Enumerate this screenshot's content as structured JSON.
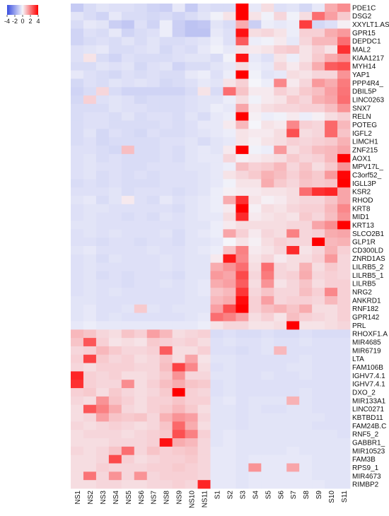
{
  "chart_data": {
    "type": "heatmap",
    "columns": [
      "NS1",
      "NS2",
      "NS3",
      "NS4",
      "NS5",
      "NS6",
      "NS7",
      "NS8",
      "NS9",
      "NS10",
      "NS11",
      "S1",
      "S2",
      "S3",
      "S4",
      "S5",
      "S6",
      "S7",
      "S8",
      "S9",
      "S10",
      "S11"
    ],
    "rows": [
      "PDE1C",
      "DSG2",
      "XXYLT1.AS",
      "GPR15",
      "DEPDC1",
      "MAL2",
      "KIAA1217",
      "MYH14",
      "YAP1",
      "PPP4R4_",
      "DBIL5P",
      "LINC0263",
      "SNX7",
      "RELN",
      "POTEG",
      "IGFL2",
      "LIMCH1",
      "ZNF215",
      "AOX1",
      "MPV17L_",
      "C3orf52_",
      "IGLL3P",
      "KSR2",
      "RHOD",
      "KRT8",
      "MID1",
      "KRT13",
      "SLCO2B1",
      "GLP1R",
      "CD300LD",
      "ZNRD1AS",
      "LILRB5_2",
      "LILRB5_1",
      "LILRB5",
      "NRG2",
      "ANKRD1",
      "RNF182",
      "GPR142",
      "PRL",
      "RHOXF1.A",
      "MIR4685",
      "MIR6719",
      "LTA",
      "FAM106B",
      "IGHV7.4.1",
      "IGHV7.4.1",
      "DXO_2",
      "MIR133A1",
      "LINC0271",
      "KBTBD11",
      "FAM24B.C",
      "RNF5_2",
      "GABBR1_",
      "MIR10523",
      "FAM3B",
      "RPS9_1",
      "MIR4673",
      "RIMBP2"
    ],
    "legend": {
      "ticks": [
        "-4",
        "-2",
        "0",
        "2",
        "4"
      ],
      "min": -4,
      "max": 4
    },
    "color_low": "#3a4ee0",
    "color_mid": "#f5f5fa",
    "color_high": "#ff0000",
    "values": [
      [
        -1,
        -0.6,
        -0.4,
        -0.5,
        -0.5,
        -0.6,
        -0.8,
        -0.9,
        -0.3,
        -1,
        -0.5,
        -0.6,
        -0.6,
        4,
        -0.3,
        0.4,
        -0.5,
        -0.4,
        -0.7,
        -0.3,
        1.2,
        1.7
      ],
      [
        -0.4,
        -0.6,
        -0.8,
        -0.3,
        -0.6,
        -0.6,
        -0.7,
        -0.6,
        -0.8,
        -0.6,
        -0.4,
        -0.1,
        0.3,
        4,
        0.3,
        -0.1,
        0.5,
        -0.1,
        0.4,
        2.2,
        1.4,
        0.7
      ],
      [
        -0.6,
        -0.3,
        -0.4,
        -0.9,
        -1.1,
        -0.5,
        -0.8,
        -0.2,
        -0.9,
        -1.2,
        -1.1,
        -0.4,
        -0.6,
        1.2,
        -0.9,
        -0.2,
        -0.3,
        -0.2,
        3,
        -0.7,
        -0.5,
        0.1
      ],
      [
        -0.8,
        -0.5,
        -0.6,
        -0.3,
        -0.8,
        -0.6,
        -0.5,
        -0.2,
        -0.9,
        -1.2,
        -1.2,
        -0.3,
        -0.5,
        3.7,
        0.4,
        0.5,
        0.3,
        -0.2,
        0.6,
        0.6,
        1.2,
        1.5
      ],
      [
        -0.8,
        -0.6,
        -0.5,
        -0.6,
        -0.4,
        -0.6,
        -0.4,
        -0.6,
        -0.6,
        -0.5,
        -0.4,
        -0.2,
        -0.5,
        2.5,
        -0.2,
        -0.1,
        0.2,
        -0.3,
        0.5,
        1,
        1,
        2.2
      ],
      [
        -0.5,
        -0.4,
        -0.3,
        -0.6,
        -0.6,
        -0.5,
        -0.4,
        -0.7,
        -0.5,
        -0.6,
        -0.3,
        -0.1,
        -0.3,
        0.3,
        0.2,
        0.3,
        0.6,
        0.7,
        0.3,
        0.6,
        0.3,
        3.2
      ],
      [
        -0.5,
        0.3,
        -0.6,
        -0.8,
        -0.5,
        -0.6,
        -0.6,
        -0.6,
        -0.5,
        -0.4,
        -0.4,
        -0.6,
        -0.1,
        3.7,
        -0.3,
        -0.5,
        0.3,
        -0.2,
        0.3,
        0.7,
        1.2,
        1.6
      ],
      [
        -0.6,
        -0.6,
        -0.4,
        -0.5,
        -0.4,
        -0.7,
        -0.5,
        -0.4,
        -0.8,
        -0.6,
        -0.6,
        -0.4,
        -0.3,
        0.4,
        -0.2,
        -0.3,
        0.5,
        0.2,
        0.5,
        1.2,
        2.5,
        2.7
      ],
      [
        -0.3,
        -0.5,
        -0.6,
        -0.7,
        -0.5,
        -0.6,
        -0.5,
        -0.6,
        -0.6,
        -0.3,
        -0.2,
        -0.5,
        -0.2,
        4.5,
        -0.1,
        -0.4,
        -0.3,
        0.4,
        0.3,
        0.5,
        0.5,
        1.6
      ],
      [
        -0.7,
        -0.5,
        -0.6,
        -0.4,
        -0.5,
        -0.4,
        -0.5,
        -0.7,
        -0.6,
        -0.5,
        -0.3,
        -0.4,
        0.3,
        0.6,
        0,
        -0.2,
        1.8,
        0.2,
        0.5,
        1.5,
        1.2,
        2
      ],
      [
        -0.8,
        -0.6,
        0.5,
        -0.6,
        -0.8,
        -0.8,
        -0.8,
        -0.8,
        -0.8,
        -0.6,
        0.3,
        -0.6,
        2.2,
        0.8,
        0.2,
        0.2,
        0.6,
        0.4,
        0.7,
        0.9,
        1.4,
        2.1
      ],
      [
        -0.7,
        0.6,
        -0.5,
        -0.4,
        -0.5,
        -0.7,
        -0.6,
        -0.6,
        -0.6,
        -0.5,
        -0.4,
        -0.4,
        -0.2,
        0.4,
        -0.1,
        0.2,
        0.3,
        0.7,
        0.5,
        1.1,
        1.3,
        2.2
      ],
      [
        -0.6,
        -0.6,
        -0.6,
        -0.4,
        -0.5,
        -0.5,
        -0.6,
        -0.6,
        -0.6,
        -0.5,
        -0.4,
        -0.2,
        -0.3,
        1.3,
        0.2,
        0.4,
        0.5,
        0.5,
        0.6,
        0.6,
        0.9,
        1.6
      ],
      [
        -0.6,
        -0.5,
        -0.5,
        -0.6,
        -0.4,
        -0.6,
        -0.5,
        -0.5,
        -0.6,
        -0.4,
        -0.6,
        -0.3,
        -0.2,
        4.5,
        0.1,
        -0.2,
        -0.1,
        0.2,
        -0.2,
        0.1,
        0.4,
        0.6
      ],
      [
        -0.6,
        -0.5,
        -0.5,
        -0.6,
        -0.6,
        -0.6,
        -0.6,
        -0.5,
        -0.6,
        -0.5,
        -0.3,
        -0.3,
        0.2,
        1,
        0,
        0.3,
        0.2,
        1.8,
        0.6,
        0.5,
        2.3,
        1
      ],
      [
        -0.6,
        -0.4,
        -0.7,
        -0.5,
        -0.6,
        -0.7,
        -0.5,
        -0.6,
        -0.6,
        -0.5,
        -0.4,
        -0.3,
        -0.2,
        0.3,
        0.2,
        0.2,
        0.4,
        2.7,
        0.4,
        0.5,
        2.3,
        0.8
      ],
      [
        -0.6,
        -0.5,
        -0.7,
        -0.6,
        -0.6,
        -0.6,
        -0.6,
        -0.5,
        -0.5,
        -0.4,
        -0.6,
        -0.4,
        -0.3,
        0.3,
        0.1,
        0.3,
        0.4,
        0.6,
        0.5,
        0.6,
        0.7,
        1.1
      ],
      [
        -0.5,
        -0.5,
        -0.6,
        -0.7,
        0.9,
        -0.6,
        -0.6,
        -0.5,
        -0.6,
        -0.4,
        -0.3,
        -0.4,
        0.2,
        4.5,
        -0.1,
        -0.2,
        1.5,
        0.4,
        0.6,
        0.9,
        1,
        1.3
      ],
      [
        -0.5,
        -0.4,
        -0.6,
        -0.5,
        -0.6,
        -0.6,
        -0.6,
        -0.5,
        -0.6,
        -0.4,
        -0.3,
        -0.3,
        0.5,
        0.1,
        0.2,
        0.3,
        0.4,
        0.7,
        0.5,
        0.6,
        1,
        4.5
      ],
      [
        -0.5,
        -0.4,
        -0.5,
        -0.5,
        -0.6,
        -0.6,
        -0.5,
        -0.5,
        -0.5,
        -0.4,
        -0.4,
        -0.3,
        -0.2,
        0.9,
        0.6,
        0.7,
        1,
        0.5,
        0.8,
        0.4,
        0.7,
        1.6
      ],
      [
        -0.5,
        -0.4,
        -0.6,
        -0.5,
        -0.6,
        -0.5,
        -0.6,
        -0.5,
        -0.5,
        -0.5,
        -0.4,
        -0.3,
        0.3,
        0.5,
        0.7,
        1.1,
        0.9,
        0.6,
        0.9,
        0.7,
        1.5,
        3.9
      ],
      [
        -0.6,
        -0.5,
        -0.6,
        -0.5,
        -0.6,
        -0.6,
        -0.6,
        -0.5,
        -0.5,
        -0.5,
        -0.4,
        -0.3,
        -0.1,
        0.3,
        0.3,
        1.2,
        0.7,
        0.5,
        0.8,
        0.7,
        0.8,
        4.5
      ],
      [
        -0.5,
        -0.5,
        -0.5,
        -0.4,
        -0.6,
        -0.5,
        -0.5,
        -0.5,
        -0.6,
        -0.5,
        -0.4,
        -0.2,
        0.1,
        0.2,
        0.2,
        0.3,
        0.3,
        0.4,
        2.2,
        3.2,
        3.4,
        1.3
      ],
      [
        -0.4,
        -0.3,
        -0.6,
        -0.4,
        0.2,
        -0.5,
        -0.6,
        -0.3,
        -0.5,
        -0.4,
        -0.3,
        -0.2,
        1.2,
        3.2,
        0.3,
        0.1,
        0.2,
        0.4,
        0.5,
        0.5,
        0.8,
        1.3
      ],
      [
        -0.5,
        -0.4,
        -0.4,
        -0.5,
        -0.5,
        -0.5,
        -0.5,
        -0.5,
        -0.6,
        -0.4,
        -0.3,
        -0.2,
        0.2,
        4.5,
        0.1,
        0.4,
        0.3,
        0.5,
        0.6,
        0.6,
        1,
        1.8
      ],
      [
        -0.5,
        -0.4,
        -0.5,
        -0.5,
        -0.6,
        -0.5,
        -0.6,
        -0.4,
        -0.5,
        -0.4,
        -0.3,
        -0.3,
        0.4,
        3.3,
        0.2,
        0.3,
        0.4,
        0.3,
        0.7,
        0.5,
        0.9,
        1.6
      ],
      [
        -0.4,
        -0.4,
        -0.5,
        -0.5,
        -0.5,
        -0.5,
        -0.5,
        -0.5,
        -0.5,
        -0.4,
        -0.4,
        -0.2,
        0.2,
        0.4,
        0.4,
        0.4,
        0.4,
        0.5,
        0.5,
        1.3,
        1.7,
        4.5
      ],
      [
        -0.5,
        -0.4,
        -0.5,
        -0.4,
        -0.5,
        -0.5,
        -0.5,
        -0.4,
        -0.6,
        -0.4,
        -0.3,
        -0.2,
        1.3,
        0.6,
        0.2,
        0.5,
        0.4,
        1.9,
        0.5,
        0.6,
        1.2,
        1.3
      ],
      [
        -0.5,
        -0.5,
        -0.6,
        -0.5,
        -0.5,
        -0.6,
        -0.5,
        -0.5,
        -0.6,
        -0.4,
        -0.4,
        -0.3,
        0,
        0.3,
        0.1,
        0.4,
        0.6,
        0.5,
        0.5,
        4.5,
        1,
        1.1
      ],
      [
        -0.4,
        -0.3,
        -0.5,
        -0.5,
        -0.5,
        -0.5,
        -0.4,
        -0.5,
        -0.5,
        -0.4,
        -0.3,
        -0.2,
        0.8,
        1.9,
        0.2,
        0.3,
        0.5,
        3.3,
        0.3,
        0.5,
        1.1,
        0.6
      ],
      [
        -0.5,
        -0.4,
        -0.6,
        -0.4,
        -0.5,
        -0.5,
        -0.5,
        -0.4,
        -0.5,
        -0.4,
        -0.4,
        0.2,
        3.6,
        1.8,
        0.3,
        0.5,
        0.2,
        0.4,
        0.4,
        0.6,
        1.5,
        0.5
      ],
      [
        -0.5,
        -0.4,
        -0.5,
        -0.5,
        -0.5,
        -0.5,
        -0.5,
        -0.4,
        -0.5,
        -0.4,
        -0.4,
        1.2,
        1.6,
        2.2,
        0.4,
        2.2,
        0.5,
        0.4,
        1.1,
        0.4,
        0.7,
        0.5
      ],
      [
        -0.5,
        -0.4,
        -0.6,
        -0.5,
        -0.6,
        -0.5,
        -0.5,
        -0.5,
        -0.6,
        -0.4,
        -0.4,
        1.5,
        1.3,
        2.8,
        0.5,
        2,
        0.5,
        0.6,
        1.2,
        0.5,
        0.6,
        0.5
      ],
      [
        -0.5,
        -0.4,
        -0.5,
        -0.5,
        -0.6,
        -0.5,
        -0.5,
        -0.4,
        -0.5,
        -0.4,
        -0.3,
        1.2,
        1.4,
        2.5,
        0.4,
        1.6,
        0.3,
        0.5,
        0.8,
        0.4,
        0.6,
        0.6
      ],
      [
        -0.5,
        -0.4,
        -0.5,
        -0.4,
        -0.5,
        -0.5,
        -0.5,
        -0.5,
        -0.5,
        -0.4,
        -0.3,
        0.8,
        1,
        3.1,
        0.5,
        0.8,
        0.5,
        0.5,
        0.9,
        0.6,
        1.8,
        0.6
      ],
      [
        -0.4,
        -0.4,
        -0.5,
        -0.5,
        -0.5,
        -0.5,
        -0.5,
        -0.5,
        -0.5,
        -0.4,
        -0.4,
        1,
        1.2,
        3.8,
        0.6,
        1.4,
        0.5,
        0.6,
        0.6,
        0.5,
        1,
        0.6
      ],
      [
        -0.4,
        -0.3,
        -0.5,
        -0.5,
        -0.4,
        0.7,
        -0.4,
        -0.5,
        -0.4,
        -0.4,
        -0.4,
        1.4,
        2.7,
        4.5,
        0.6,
        0.9,
        1.1,
        0.8,
        1.2,
        0.4,
        0.4,
        0.6
      ],
      [
        -0.4,
        -0.3,
        -0.5,
        -0.4,
        -0.5,
        -0.5,
        -0.5,
        -0.5,
        -0.5,
        -0.4,
        -0.3,
        2.2,
        1.9,
        1.4,
        0.4,
        0.6,
        0.3,
        0.9,
        0.6,
        0.5,
        0.4,
        0.6
      ],
      [
        -0.3,
        -0.2,
        -0.3,
        -0.3,
        -0.3,
        -0.3,
        -0.3,
        -0.3,
        -0.3,
        -0.3,
        -0.2,
        0.3,
        0.5,
        0.5,
        0.3,
        0.3,
        0.4,
        4.5,
        0.3,
        0.3,
        0.4,
        0.5
      ],
      [
        1,
        0.8,
        0.5,
        0.4,
        0.8,
        0.6,
        1.4,
        1,
        0.4,
        0.5,
        0.6,
        -0.6,
        -0.5,
        -0.6,
        -0.6,
        -0.5,
        -0.6,
        -0.6,
        -0.5,
        -0.6,
        -0.6,
        -0.6
      ],
      [
        0.8,
        2.6,
        0.6,
        0.3,
        0.4,
        0.3,
        0.7,
        0.6,
        0.5,
        0.6,
        0.4,
        -0.5,
        -0.4,
        -0.5,
        -0.5,
        -0.4,
        -0.5,
        -0.5,
        -0.4,
        -0.5,
        -0.5,
        -0.5
      ],
      [
        0.5,
        0.6,
        1,
        0.7,
        0.5,
        0.5,
        0.6,
        2.5,
        0.4,
        0.4,
        0.6,
        -0.5,
        -0.5,
        -0.6,
        -0.5,
        -0.4,
        1,
        -0.5,
        -0.5,
        -0.5,
        -0.5,
        -0.5
      ],
      [
        0.6,
        2.9,
        0.7,
        0.5,
        0.6,
        0.4,
        0.5,
        0.8,
        0.4,
        1.3,
        0.3,
        -0.4,
        -0.4,
        -0.5,
        -0.5,
        -0.5,
        -0.5,
        -0.5,
        -0.4,
        -0.5,
        -0.5,
        -0.5
      ],
      [
        0.5,
        0.4,
        0.6,
        0.6,
        0.6,
        0.5,
        0.5,
        0.9,
        2.9,
        1.8,
        0.4,
        -0.5,
        -0.4,
        -0.5,
        -0.5,
        -0.5,
        -0.5,
        -0.4,
        -0.4,
        -0.5,
        -0.5,
        -0.5
      ],
      [
        3.4,
        0.6,
        0.5,
        0.6,
        0.4,
        0.4,
        0.5,
        0.7,
        1.6,
        0.5,
        0.5,
        -0.4,
        -0.4,
        -0.5,
        -0.5,
        -0.4,
        -0.5,
        -0.5,
        -0.4,
        -0.5,
        -0.5,
        -0.5
      ],
      [
        3.2,
        0.6,
        0.5,
        0.5,
        1.7,
        0.4,
        0.6,
        0.9,
        1.2,
        0.8,
        0.7,
        -0.5,
        -0.4,
        -0.5,
        -0.5,
        -0.5,
        -0.5,
        -0.5,
        -0.5,
        -0.5,
        -0.5,
        -0.5
      ],
      [
        0.6,
        0.7,
        0.4,
        0.7,
        0.5,
        0.4,
        0.5,
        0.7,
        4.5,
        0.6,
        0.5,
        -0.5,
        -0.4,
        -0.5,
        -0.5,
        -0.5,
        -0.5,
        -0.5,
        -0.4,
        -0.5,
        -0.5,
        -0.5
      ],
      [
        0.5,
        0.4,
        1.6,
        0.8,
        0.6,
        0.4,
        0.6,
        0.6,
        0.8,
        0.6,
        0.6,
        -0.4,
        -0.3,
        -0.5,
        -0.4,
        -0.4,
        -0.4,
        1.1,
        -0.4,
        -0.5,
        -0.5,
        -0.5
      ],
      [
        0.4,
        2.6,
        1.9,
        1.2,
        0.5,
        0.4,
        0.6,
        0.7,
        1,
        0.7,
        0.4,
        -0.4,
        -0.4,
        -0.5,
        -0.4,
        -0.5,
        -0.5,
        -0.4,
        -0.4,
        -0.5,
        -0.5,
        -0.5
      ],
      [
        0.4,
        0.5,
        1.4,
        0.8,
        0.7,
        0.8,
        0.5,
        1.1,
        1.6,
        1.4,
        0.5,
        -0.4,
        -0.4,
        -0.5,
        -0.4,
        -0.4,
        -0.4,
        -0.4,
        -0.4,
        -0.4,
        -0.5,
        -0.5
      ],
      [
        0.5,
        0.4,
        0.5,
        0.6,
        0.5,
        0.4,
        0.5,
        0.8,
        2.3,
        1.2,
        0.4,
        -0.4,
        -0.4,
        -0.5,
        -0.4,
        -0.4,
        -0.4,
        -0.4,
        -0.4,
        -0.5,
        -0.5,
        -0.5
      ],
      [
        0.4,
        0.5,
        0.5,
        0.5,
        0.4,
        0.5,
        0.6,
        0.7,
        2.7,
        1.9,
        0.6,
        -0.4,
        -0.3,
        -0.4,
        -0.4,
        -0.4,
        -0.4,
        -0.4,
        -0.4,
        -0.4,
        -0.4,
        -0.5
      ],
      [
        0.4,
        0.4,
        0.4,
        0.5,
        0.5,
        0.5,
        0.6,
        3.7,
        1.2,
        1,
        0.5,
        -0.4,
        -0.3,
        -0.4,
        -0.4,
        -0.4,
        -0.4,
        -0.4,
        -0.4,
        -0.4,
        -0.4,
        -0.4
      ],
      [
        0.5,
        0.4,
        0.5,
        0.8,
        2.2,
        0.5,
        0.8,
        0.6,
        0.7,
        0.8,
        0.5,
        -0.3,
        -0.3,
        -0.4,
        -0.4,
        -0.4,
        -0.4,
        -0.3,
        -0.4,
        -0.4,
        -0.4,
        -0.4
      ],
      [
        0.4,
        0.4,
        0.5,
        2.8,
        0.6,
        0.4,
        0.5,
        0.6,
        0.6,
        0.7,
        0.5,
        -0.3,
        -0.3,
        -0.4,
        -0.3,
        -0.3,
        -0.3,
        -0.3,
        -0.3,
        -0.4,
        -0.4,
        -0.4
      ],
      [
        0.4,
        0.4,
        0.6,
        0.5,
        0.5,
        0.5,
        0.6,
        0.6,
        0.7,
        0.6,
        0.5,
        -0.3,
        -0.3,
        -0.4,
        1.6,
        -0.3,
        -0.3,
        1.3,
        -0.3,
        -0.4,
        -0.4,
        -0.4
      ],
      [
        0.4,
        2.1,
        0.5,
        1.6,
        0.5,
        1.6,
        0.5,
        0.6,
        0.6,
        0.6,
        0.5,
        -0.3,
        -0.3,
        -0.4,
        -0.3,
        -0.3,
        -0.3,
        -0.3,
        -0.3,
        -0.4,
        -0.4,
        -0.4
      ],
      [
        0.4,
        0.4,
        0.5,
        0.5,
        0.4,
        0.4,
        0.5,
        0.5,
        0.6,
        0.5,
        3.4,
        -0.3,
        -0.3,
        -0.4,
        -0.3,
        -0.3,
        -0.3,
        -0.3,
        -0.3,
        -0.3,
        -0.4,
        -0.4
      ]
    ]
  }
}
